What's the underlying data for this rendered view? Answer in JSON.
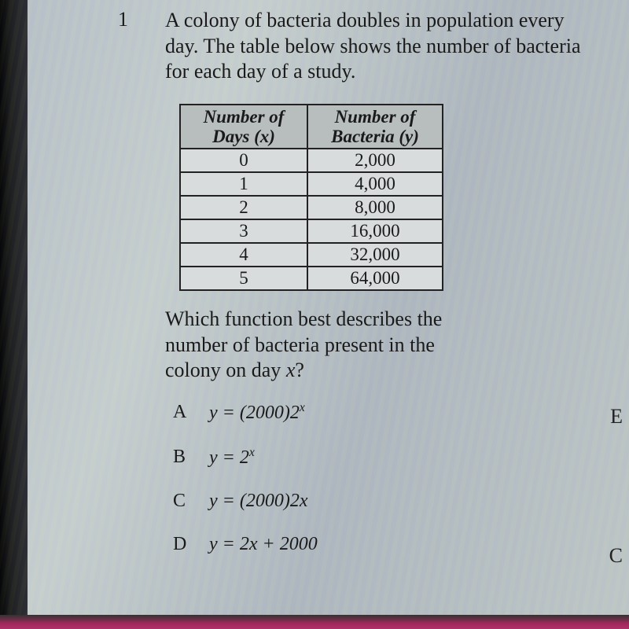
{
  "question": {
    "number": "1",
    "stem": "A colony of bacteria doubles in population every day. The table below shows the number of bacteria for each day of a study.",
    "prompt": "Which function best describes the number of bacteria present in the colony on day x?"
  },
  "table": {
    "header_x_line1": "Number of",
    "header_x_line2": "Days (x)",
    "header_y_line1": "Number of",
    "header_y_line2": "Bacteria (y)",
    "rows": [
      {
        "x": "0",
        "y": "2,000"
      },
      {
        "x": "1",
        "y": "4,000"
      },
      {
        "x": "2",
        "y": "8,000"
      },
      {
        "x": "3",
        "y": "16,000"
      },
      {
        "x": "4",
        "y": "32,000"
      },
      {
        "x": "5",
        "y": "64,000"
      }
    ],
    "header_bg": "#b8bebe",
    "cell_bg": "#d8dcdc",
    "border_color": "#222222"
  },
  "answers": {
    "A": {
      "letter": "A",
      "pre": "y = (2000)2",
      "sup": "x",
      "post": ""
    },
    "B": {
      "letter": "B",
      "pre": "y = 2",
      "sup": "x",
      "post": ""
    },
    "C": {
      "letter": "C",
      "pre": "y = (2000)2x",
      "sup": "",
      "post": ""
    },
    "D": {
      "letter": "D",
      "pre": "y = 2x + 2000",
      "sup": "",
      "post": ""
    }
  },
  "edge_letters": {
    "E": "E",
    "C": "C"
  }
}
